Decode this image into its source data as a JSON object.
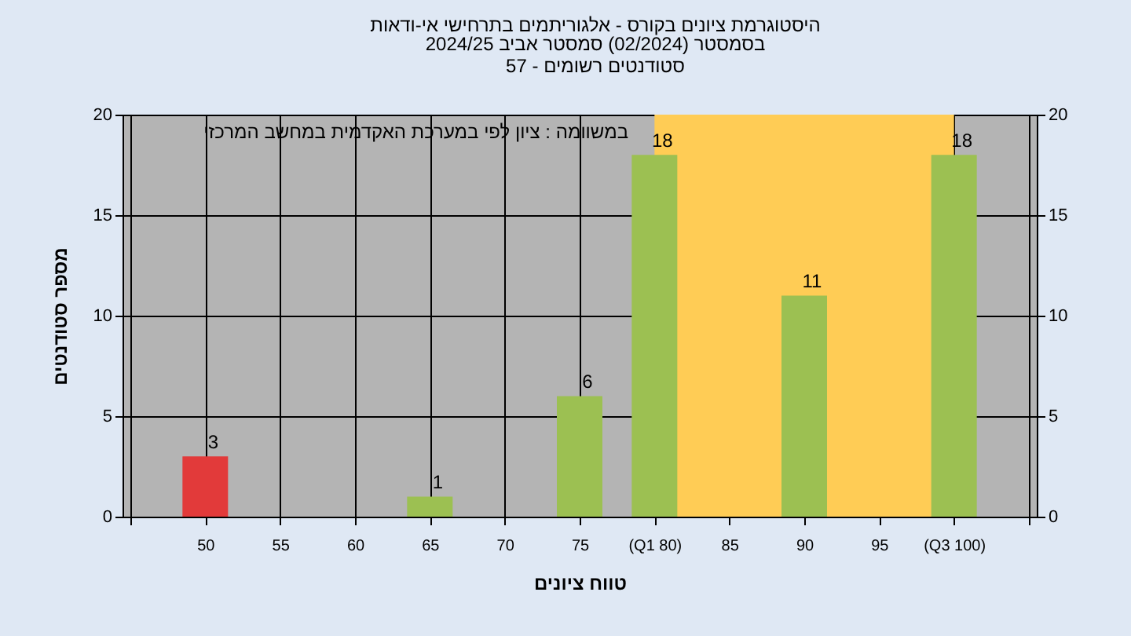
{
  "chart_data": {
    "type": "bar",
    "title": "היסטוגרמת ציונים בקורס - אלגוריתמים בתרחישי אי-ודאות",
    "subtitle": "בסמסטר (02/2024) סמסטר אביב 2024/25\nסטודנטים רשומים - 57",
    "xlabel": "טווח ציונים",
    "ylabel": "מספר סטודנטים",
    "annotations": [
      "במשוומה : ציון לפי במערכת האקדמית במחשב המרכזי"
    ],
    "x": [
      50,
      55,
      60,
      65,
      70,
      75,
      80,
      85,
      90,
      95,
      100
    ],
    "values": [
      3,
      0,
      0,
      1,
      0,
      6,
      18,
      0,
      11,
      0,
      18
    ],
    "colors": [
      "#e23a3a",
      "#9cc052",
      "#9cc052",
      "#9cc052",
      "#9cc052",
      "#9cc052",
      "#9cc052",
      "#9cc052",
      "#9cc052",
      "#9cc052",
      "#9cc052"
    ],
    "value_labels": [
      "3",
      null,
      null,
      "1",
      null,
      "6",
      "18",
      null,
      "11",
      null,
      "18"
    ],
    "xlim": [
      45,
      105
    ],
    "xticks": [
      {
        "value": 45,
        "label": null
      },
      50,
      55,
      60,
      65,
      70,
      75,
      {
        "value": 80,
        "label": "(Q1 80)"
      },
      85,
      90,
      95,
      {
        "value": 100,
        "label": "(Q3 100)"
      },
      {
        "value": 105,
        "label": null
      }
    ],
    "ylim": [
      0,
      20
    ],
    "yticks": [
      0,
      5,
      10,
      15,
      20
    ],
    "y2lim": [
      0,
      20
    ],
    "y2ticks": [
      0,
      5,
      10,
      15,
      20
    ],
    "bands": [
      {
        "axis": "x",
        "from": 80,
        "to": 100,
        "color": "#ffcc55"
      }
    ],
    "grid": true
  }
}
